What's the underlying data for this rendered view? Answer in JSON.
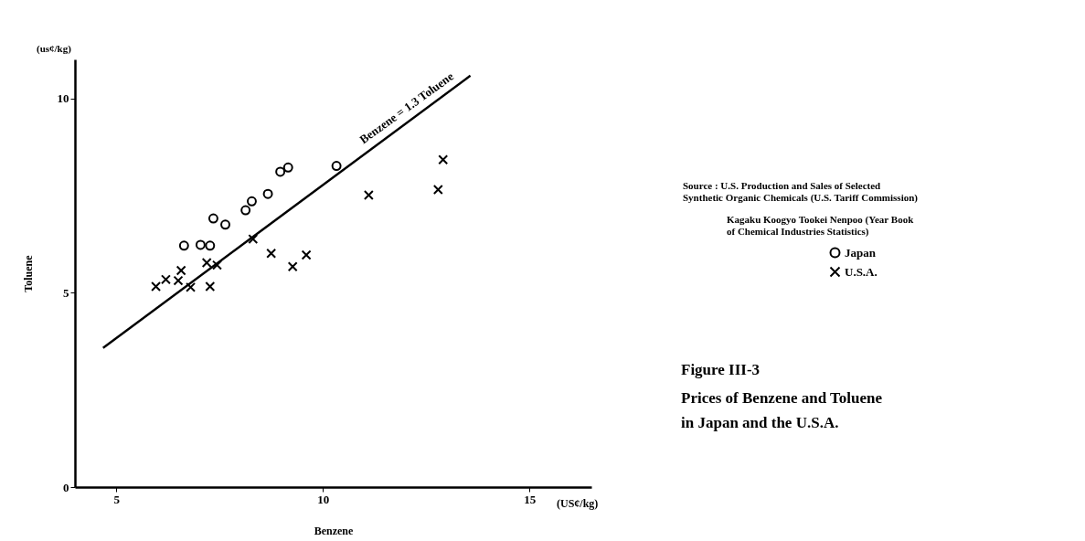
{
  "chart_data": {
    "type": "scatter",
    "title": "Figure III-3",
    "subtitle": "Prices of Benzene and Toluene in Japan and the U.S.A.",
    "xlabel": "Benzene",
    "ylabel": "Toluene",
    "xlim": [
      4,
      16.5
    ],
    "ylim": [
      0,
      11
    ],
    "xticks": [
      5,
      10,
      15
    ],
    "yticks": [
      0,
      5,
      10
    ],
    "grid": false,
    "legend": "right",
    "series": [
      {
        "name": "Japan",
        "color": "#000000",
        "marker": "circle",
        "x": [
          6.64,
          7.04,
          7.27,
          7.35,
          7.64,
          8.13,
          8.28,
          8.67,
          8.97,
          9.16,
          10.33
        ],
        "values": [
          6.21,
          6.23,
          6.21,
          6.91,
          6.75,
          7.12,
          7.35,
          7.54,
          8.11,
          8.22,
          8.26
        ]
      },
      {
        "name": "U.S.A.",
        "color": "#000000",
        "marker": "cross",
        "x": [
          5.96,
          6.2,
          6.57,
          6.5,
          6.8,
          7.19,
          7.44,
          7.27,
          8.31,
          8.75,
          9.27,
          9.6,
          11.11,
          12.79,
          12.91
        ],
        "values": [
          5.16,
          5.34,
          5.57,
          5.31,
          5.14,
          5.77,
          5.71,
          5.16,
          6.38,
          6.01,
          5.67,
          5.97,
          7.51,
          7.65,
          8.42
        ]
      },
      {
        "type": "line",
        "color": "#000000",
        "line_style": "solid",
        "x": [
          4.68,
          13.57
        ],
        "values": [
          3.58,
          10.58
        ]
      }
    ],
    "annotations": [
      {
        "text": "Benzene = 1.3 Toluene",
        "x": 12.2,
        "y": 9.5
      },
      "(us¢/kg)",
      "(US¢/kg)",
      "Source :  U.S. Production and Sales of Selected Synthetic Organic Chemicals (U.S. Tariff Commission)",
      "Kagaku Koogyo Tookei Nenpoo (Year Book of Chemical Industries Statistics)"
    ]
  }
}
